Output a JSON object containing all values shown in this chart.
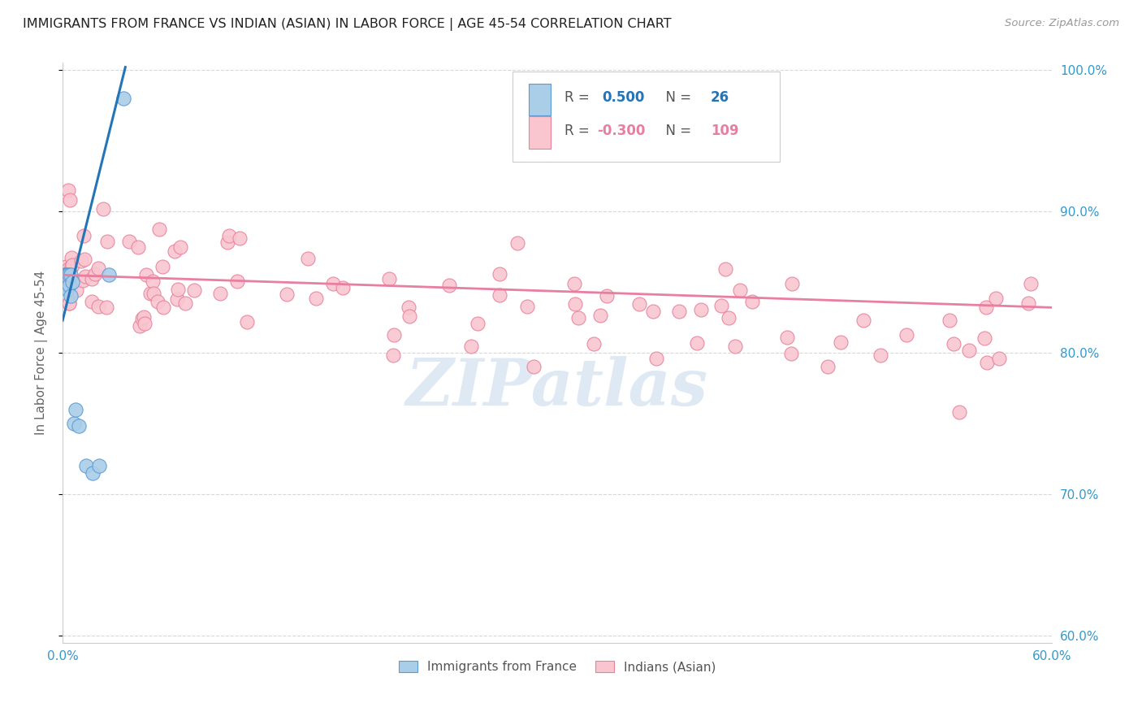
{
  "title": "IMMIGRANTS FROM FRANCE VS INDIAN (ASIAN) IN LABOR FORCE | AGE 45-54 CORRELATION CHART",
  "source": "Source: ZipAtlas.com",
  "ylabel": "In Labor Force | Age 45-54",
  "xlim": [
    0.0,
    0.6
  ],
  "ylim": [
    0.595,
    1.005
  ],
  "xticks": [
    0.0,
    0.1,
    0.2,
    0.3,
    0.4,
    0.5,
    0.6
  ],
  "xticklabels": [
    "0.0%",
    "",
    "",
    "",
    "",
    "",
    "60.0%"
  ],
  "yticks": [
    0.6,
    0.7,
    0.8,
    0.9,
    1.0
  ],
  "yticklabels": [
    "60.0%",
    "70.0%",
    "80.0%",
    "90.0%",
    "100.0%"
  ],
  "france_color": "#aacde8",
  "france_edge": "#5b9bd5",
  "indian_color": "#f9c6d0",
  "indian_edge": "#e8829a",
  "france_r": 0.5,
  "france_n": 26,
  "indian_r": -0.3,
  "indian_n": 109,
  "background_color": "#ffffff",
  "grid_color": "#d8d8d8",
  "tick_color": "#3399cc",
  "title_color": "#222222",
  "watermark": "ZIPatlas",
  "watermark_color": "#c5d8ec",
  "trendline_blue": "#2475b8",
  "trendline_pink": "#e87ea1",
  "france_line_x0": 0.0,
  "france_line_y0": 0.823,
  "france_line_x1": 0.038,
  "france_line_y1": 1.002,
  "indian_line_x0": 0.0,
  "indian_line_y0": 0.855,
  "indian_line_x1": 0.6,
  "indian_line_y1": 0.832
}
